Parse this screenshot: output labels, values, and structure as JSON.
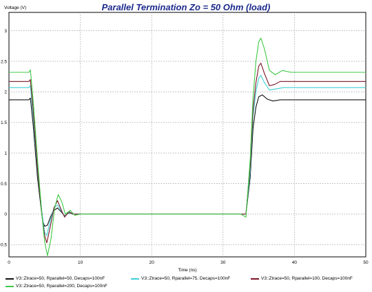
{
  "chart_data": {
    "type": "line",
    "title": "Parallel Termination Zo = 50 Ohm (load)",
    "xlabel": "Time (ns)",
    "ylabel": "Voltage (V)",
    "xlim": [
      0,
      50
    ],
    "ylim": [
      -0.7,
      3.3
    ],
    "x_ticks": [
      0,
      10,
      20,
      30,
      40,
      50
    ],
    "y_ticks": [
      -0.5,
      0,
      0.5,
      1,
      1.5,
      2,
      2.5,
      3
    ],
    "y_tick_labels": [
      "-0.5",
      "0",
      "0.5",
      "1",
      "1.5",
      "2",
      "2.5",
      "3"
    ],
    "grid": true,
    "legend_position": "bottom",
    "series": [
      {
        "name": "V3::Ztrace=50, Rparallel=50, Decaps=100nF",
        "color": "#111111",
        "points": [
          [
            0,
            1.87
          ],
          [
            2.8,
            1.87
          ],
          [
            3.0,
            1.9
          ],
          [
            3.4,
            1.45
          ],
          [
            4.0,
            0.6
          ],
          [
            4.7,
            -0.1
          ],
          [
            5.0,
            -0.2
          ],
          [
            5.4,
            -0.18
          ],
          [
            5.8,
            -0.05
          ],
          [
            6.2,
            0.05
          ],
          [
            6.8,
            0.1
          ],
          [
            7.3,
            0.04
          ],
          [
            7.8,
            -0.03
          ],
          [
            8.4,
            0.02
          ],
          [
            9.0,
            0.0
          ],
          [
            10,
            0.0
          ],
          [
            14,
            0.0
          ],
          [
            32.5,
            0.0
          ],
          [
            33.2,
            0.0
          ],
          [
            33.8,
            0.6
          ],
          [
            34.2,
            1.4
          ],
          [
            34.6,
            1.75
          ],
          [
            35.0,
            1.92
          ],
          [
            35.5,
            1.95
          ],
          [
            36.2,
            1.88
          ],
          [
            37,
            1.85
          ],
          [
            38,
            1.87
          ],
          [
            50,
            1.87
          ]
        ]
      },
      {
        "name": "V3::Ztrace=50, Rparallel=75, Decaps=100nF",
        "color": "#3fcfd6",
        "points": [
          [
            0,
            2.07
          ],
          [
            2.8,
            2.07
          ],
          [
            3.0,
            2.1
          ],
          [
            3.4,
            1.6
          ],
          [
            4.0,
            0.7
          ],
          [
            4.7,
            -0.05
          ],
          [
            5.0,
            -0.3
          ],
          [
            5.3,
            -0.35
          ],
          [
            5.8,
            -0.1
          ],
          [
            6.3,
            0.1
          ],
          [
            6.8,
            0.15
          ],
          [
            7.3,
            0.06
          ],
          [
            7.8,
            -0.04
          ],
          [
            8.4,
            0.03
          ],
          [
            9.0,
            0.0
          ],
          [
            10,
            0.0
          ],
          [
            14,
            0.0
          ],
          [
            32.5,
            0.0
          ],
          [
            33.2,
            0.0
          ],
          [
            33.8,
            0.7
          ],
          [
            34.2,
            1.6
          ],
          [
            34.6,
            2.0
          ],
          [
            35.0,
            2.22
          ],
          [
            35.3,
            2.27
          ],
          [
            35.8,
            2.15
          ],
          [
            36.5,
            2.03
          ],
          [
            37.5,
            2.05
          ],
          [
            38.5,
            2.07
          ],
          [
            50,
            2.07
          ]
        ]
      },
      {
        "name": "V3::Ztrace=50, Rparallel=100, Decaps=100nF",
        "color": "#7a1426",
        "points": [
          [
            0,
            2.17
          ],
          [
            2.8,
            2.17
          ],
          [
            3.0,
            2.2
          ],
          [
            3.4,
            1.7
          ],
          [
            4.0,
            0.75
          ],
          [
            4.7,
            -0.1
          ],
          [
            5.0,
            -0.35
          ],
          [
            5.3,
            -0.47
          ],
          [
            5.8,
            -0.2
          ],
          [
            6.3,
            0.1
          ],
          [
            6.8,
            0.22
          ],
          [
            7.3,
            0.08
          ],
          [
            7.8,
            -0.05
          ],
          [
            8.4,
            0.04
          ],
          [
            9.0,
            0.0
          ],
          [
            10,
            0.0
          ],
          [
            14,
            0.0
          ],
          [
            32.5,
            0.0
          ],
          [
            33.2,
            0.0
          ],
          [
            33.8,
            0.8
          ],
          [
            34.2,
            1.7
          ],
          [
            34.6,
            2.15
          ],
          [
            35.0,
            2.42
          ],
          [
            35.3,
            2.47
          ],
          [
            35.8,
            2.3
          ],
          [
            36.5,
            2.1
          ],
          [
            37.2,
            2.12
          ],
          [
            38,
            2.17
          ],
          [
            50,
            2.17
          ]
        ]
      },
      {
        "name": "V3::Ztrace=50, Rparallel=200, Decaps=100nF",
        "color": "#3dc843",
        "points": [
          [
            0,
            2.32
          ],
          [
            2.8,
            2.32
          ],
          [
            3.0,
            2.36
          ],
          [
            3.4,
            1.85
          ],
          [
            4.0,
            0.9
          ],
          [
            4.6,
            0.0
          ],
          [
            5.0,
            -0.45
          ],
          [
            5.4,
            -0.68
          ],
          [
            5.9,
            -0.4
          ],
          [
            6.4,
            0.1
          ],
          [
            6.9,
            0.32
          ],
          [
            7.4,
            0.2
          ],
          [
            7.9,
            0.0
          ],
          [
            8.6,
            0.06
          ],
          [
            9.2,
            -0.02
          ],
          [
            10,
            0.0
          ],
          [
            14,
            0.0
          ],
          [
            32.5,
            0.0
          ],
          [
            33.2,
            -0.05
          ],
          [
            33.8,
            0.9
          ],
          [
            34.2,
            1.9
          ],
          [
            34.6,
            2.5
          ],
          [
            35.0,
            2.82
          ],
          [
            35.3,
            2.88
          ],
          [
            35.8,
            2.7
          ],
          [
            36.5,
            2.35
          ],
          [
            37.3,
            2.28
          ],
          [
            38.3,
            2.35
          ],
          [
            39.5,
            2.32
          ],
          [
            50,
            2.32
          ]
        ]
      }
    ]
  }
}
